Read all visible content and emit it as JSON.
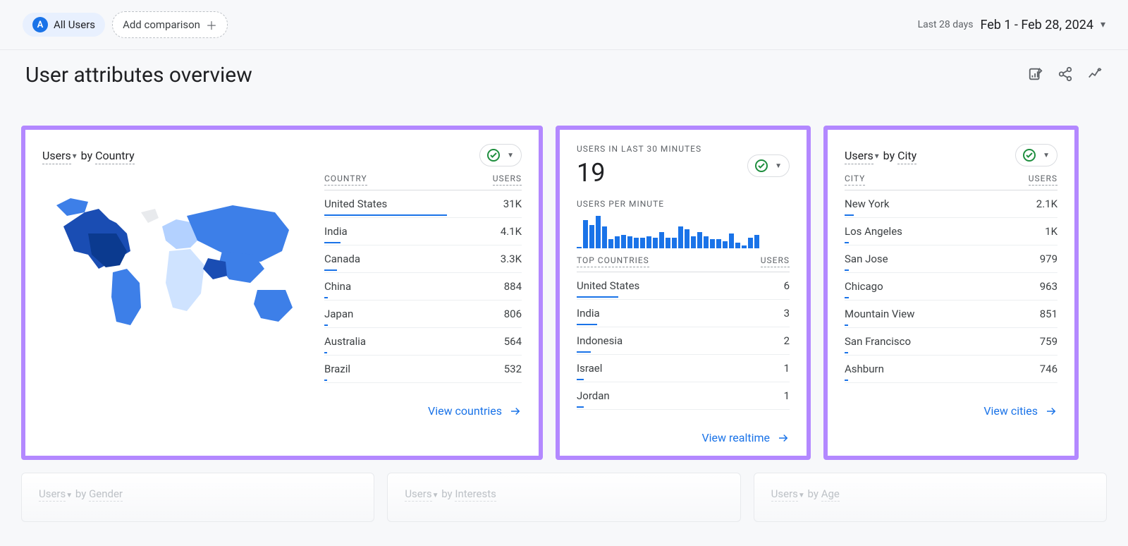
{
  "topbar": {
    "all_users_badge": "A",
    "all_users_label": "All Users",
    "add_comparison": "Add comparison",
    "date_label": "Last 28 days",
    "date_range": "Feb 1 - Feb 28, 2024"
  },
  "title": "User attributes overview",
  "colors": {
    "accent": "#1a73e8",
    "highlight_border": "#b388ff",
    "text": "#202124",
    "muted": "#5f6368",
    "divider": "#e8eaed",
    "check": "#1e8e3e"
  },
  "card_country": {
    "metric_a": "Users",
    "by": " by ",
    "metric_b": "Country",
    "headers": {
      "country": "COUNTRY",
      "users": "USERS"
    },
    "max_value": 31000,
    "rows": [
      {
        "name": "United States",
        "display": "31K",
        "value": 31000
      },
      {
        "name": "India",
        "display": "4.1K",
        "value": 4100
      },
      {
        "name": "Canada",
        "display": "3.3K",
        "value": 3300
      },
      {
        "name": "China",
        "display": "884",
        "value": 884
      },
      {
        "name": "Japan",
        "display": "806",
        "value": 806
      },
      {
        "name": "Australia",
        "display": "564",
        "value": 564
      },
      {
        "name": "Brazil",
        "display": "532",
        "value": 532
      }
    ],
    "view_link": "View countries",
    "map_colors": {
      "high": "#1a4db3",
      "mid": "#3d7fe8",
      "low": "#b3d1ff",
      "vlow": "#cfe3ff",
      "none": "#e8eaed"
    }
  },
  "card_realtime": {
    "header_label": "USERS IN LAST 30 MINUTES",
    "value": "19",
    "upm_label": "USERS PER MINUTE",
    "spark_values": [
      2,
      38,
      32,
      44,
      30,
      12,
      16,
      18,
      16,
      14,
      14,
      16,
      14,
      22,
      14,
      14,
      30,
      26,
      16,
      22,
      16,
      12,
      12,
      10,
      20,
      8,
      4,
      14,
      18,
      0
    ],
    "spark_color": "#1a73e8",
    "headers": {
      "country": "TOP COUNTRIES",
      "users": "USERS"
    },
    "max_value": 6,
    "rows": [
      {
        "name": "United States",
        "display": "6",
        "value": 6
      },
      {
        "name": "India",
        "display": "3",
        "value": 3
      },
      {
        "name": "Indonesia",
        "display": "2",
        "value": 2
      },
      {
        "name": "Israel",
        "display": "1",
        "value": 1
      },
      {
        "name": "Jordan",
        "display": "1",
        "value": 1
      }
    ],
    "view_link": "View realtime"
  },
  "card_city": {
    "metric_a": "Users",
    "by": " by ",
    "metric_b": "City",
    "headers": {
      "city": "CITY",
      "users": "USERS"
    },
    "max_value": 31000,
    "rows": [
      {
        "name": "New York",
        "display": "2.1K",
        "value": 2100
      },
      {
        "name": "Los Angeles",
        "display": "1K",
        "value": 1000
      },
      {
        "name": "San Jose",
        "display": "979",
        "value": 979
      },
      {
        "name": "Chicago",
        "display": "963",
        "value": 963
      },
      {
        "name": "Mountain View",
        "display": "851",
        "value": 851
      },
      {
        "name": "San Francisco",
        "display": "759",
        "value": 759
      },
      {
        "name": "Ashburn",
        "display": "746",
        "value": 746
      }
    ],
    "view_link": "View cities"
  },
  "faded_cards": [
    {
      "metric_a": "Users",
      "by": " by ",
      "metric_b": "Gender"
    },
    {
      "metric_a": "Users",
      "by": " by ",
      "metric_b": "Interests"
    },
    {
      "metric_a": "Users",
      "by": " by ",
      "metric_b": "Age"
    }
  ]
}
